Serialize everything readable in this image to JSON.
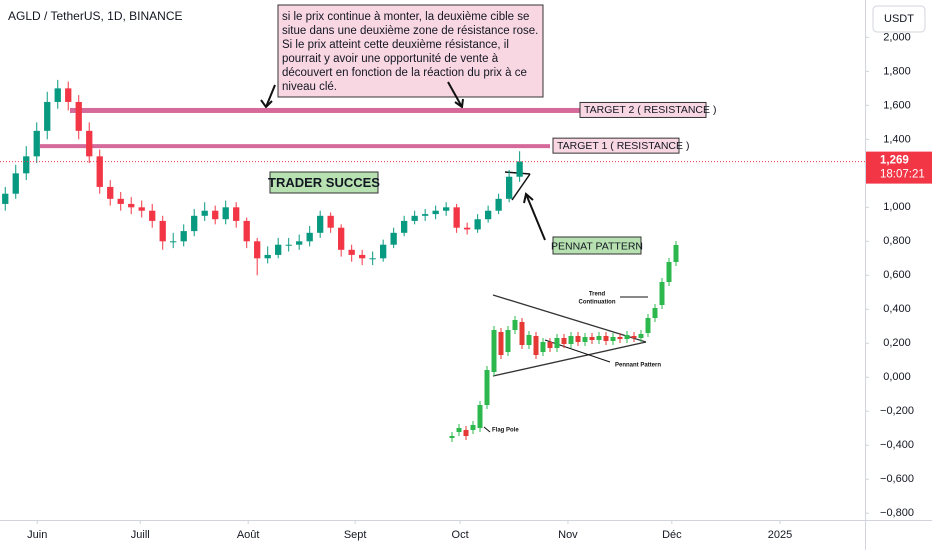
{
  "chart_data": {
    "type": "candlestick",
    "title": "AGLD / TetherUS, 1D, BINANCE",
    "currency": "USDT",
    "last_price": {
      "value": 1.269,
      "label": "1,269"
    },
    "countdown": "18:07:21",
    "up_color": "#089981",
    "down_color": "#f23645",
    "xlim": [
      -0.5,
      81.9
    ],
    "xticks": [
      {
        "value": 3.05,
        "label": "Juin"
      },
      {
        "value": 12.86,
        "label": "Juill"
      },
      {
        "value": 23.14,
        "label": "Août"
      },
      {
        "value": 33.33,
        "label": "Sept"
      },
      {
        "value": 43.33,
        "label": "Oct"
      },
      {
        "value": 53.6,
        "label": "Nov"
      },
      {
        "value": 63.5,
        "label": "Déc"
      },
      {
        "value": 73.8,
        "label": "2025"
      }
    ],
    "ylim": [
      -0.84,
      2.22
    ],
    "yticks": [
      {
        "value": 2.0,
        "label": "2,000"
      },
      {
        "value": 1.8,
        "label": "1,800"
      },
      {
        "value": 1.6,
        "label": "1,600"
      },
      {
        "value": 1.4,
        "label": "1,400"
      },
      {
        "value": 1.2,
        "label": "1,200"
      },
      {
        "value": 1.0,
        "label": "1,000"
      },
      {
        "value": 0.8,
        "label": "0,800"
      },
      {
        "value": 0.6,
        "label": "0,600"
      },
      {
        "value": 0.4,
        "label": "0,400"
      },
      {
        "value": 0.2,
        "label": "0,200"
      },
      {
        "value": 0.0,
        "label": "0,000"
      },
      {
        "value": -0.2,
        "label": "−0,200"
      },
      {
        "value": -0.4,
        "label": "−0,400"
      },
      {
        "value": -0.6,
        "label": "−0,600"
      },
      {
        "value": -0.8,
        "label": "−0,800"
      }
    ],
    "open": [
      1.02,
      1.08,
      1.2,
      1.3,
      1.45,
      1.62,
      1.7,
      1.62,
      1.45,
      1.3,
      1.12,
      1.05,
      1.02,
      1.0,
      0.98,
      0.92,
      0.8,
      0.8,
      0.86,
      0.95,
      0.98,
      0.93,
      1.0,
      0.92,
      0.8,
      0.7,
      0.72,
      0.78,
      0.78,
      0.8,
      0.85,
      0.95,
      0.88,
      0.75,
      0.72,
      0.7,
      0.7,
      0.78,
      0.85,
      0.92,
      0.95,
      0.96,
      0.98,
      1.0,
      0.88,
      0.87,
      0.93,
      0.98,
      1.05,
      1.18
    ],
    "high": [
      1.12,
      1.25,
      1.36,
      1.5,
      1.68,
      1.75,
      1.74,
      1.66,
      1.5,
      1.34,
      1.16,
      1.09,
      1.06,
      1.04,
      1.02,
      0.95,
      0.85,
      0.9,
      0.99,
      1.03,
      1.01,
      1.04,
      1.03,
      0.94,
      0.82,
      0.77,
      0.82,
      0.82,
      0.84,
      0.89,
      0.98,
      0.97,
      0.9,
      0.78,
      0.75,
      0.74,
      0.81,
      0.88,
      0.95,
      0.98,
      0.99,
      1.01,
      1.03,
      1.02,
      0.91,
      0.96,
      1.01,
      1.08,
      1.22,
      1.33
    ],
    "low": [
      0.98,
      1.05,
      1.16,
      1.26,
      1.4,
      1.58,
      1.57,
      1.4,
      1.26,
      1.08,
      1.01,
      0.98,
      0.96,
      0.94,
      0.88,
      0.75,
      0.76,
      0.77,
      0.83,
      0.92,
      0.9,
      0.9,
      0.88,
      0.76,
      0.6,
      0.67,
      0.7,
      0.74,
      0.75,
      0.77,
      0.82,
      0.85,
      0.71,
      0.68,
      0.66,
      0.66,
      0.68,
      0.76,
      0.83,
      0.9,
      0.92,
      0.93,
      0.95,
      0.85,
      0.84,
      0.85,
      0.91,
      0.96,
      1.03,
      1.15
    ],
    "close": [
      1.08,
      1.2,
      1.3,
      1.45,
      1.62,
      1.7,
      1.62,
      1.45,
      1.3,
      1.12,
      1.05,
      1.02,
      1.0,
      0.98,
      0.92,
      0.8,
      0.8,
      0.86,
      0.95,
      0.98,
      0.93,
      1.0,
      0.92,
      0.8,
      0.7,
      0.72,
      0.78,
      0.78,
      0.8,
      0.85,
      0.95,
      0.88,
      0.75,
      0.72,
      0.7,
      0.7,
      0.78,
      0.85,
      0.92,
      0.95,
      0.96,
      0.98,
      1.0,
      0.88,
      0.87,
      0.93,
      0.98,
      1.05,
      1.18,
      1.27
    ],
    "levels": [
      {
        "name": "TARGET 2 ( RESISTANCE )",
        "value": 1.57,
        "color": "#d5699a"
      },
      {
        "name": "TARGET 1 ( RESISTANCE )",
        "value": 1.36,
        "color": "#d5699a"
      }
    ],
    "note": [
      "si le prix continue à monter, la deuxième cible se",
      " situe dans une deuxième zone de résistance rose.",
      " Si le prix atteint cette deuxième résistance, il",
      "pourrait y avoir une opportunité de vente à",
      "découvert en fonction de la réaction du prix à ce",
      "niveau clé."
    ],
    "labels": [
      "TRADER SUCCES",
      "PENNAT PATTERN"
    ],
    "inset_labels": [
      "Trend",
      "Continuation",
      "Pennant Pattern",
      "Flag Pole"
    ]
  }
}
